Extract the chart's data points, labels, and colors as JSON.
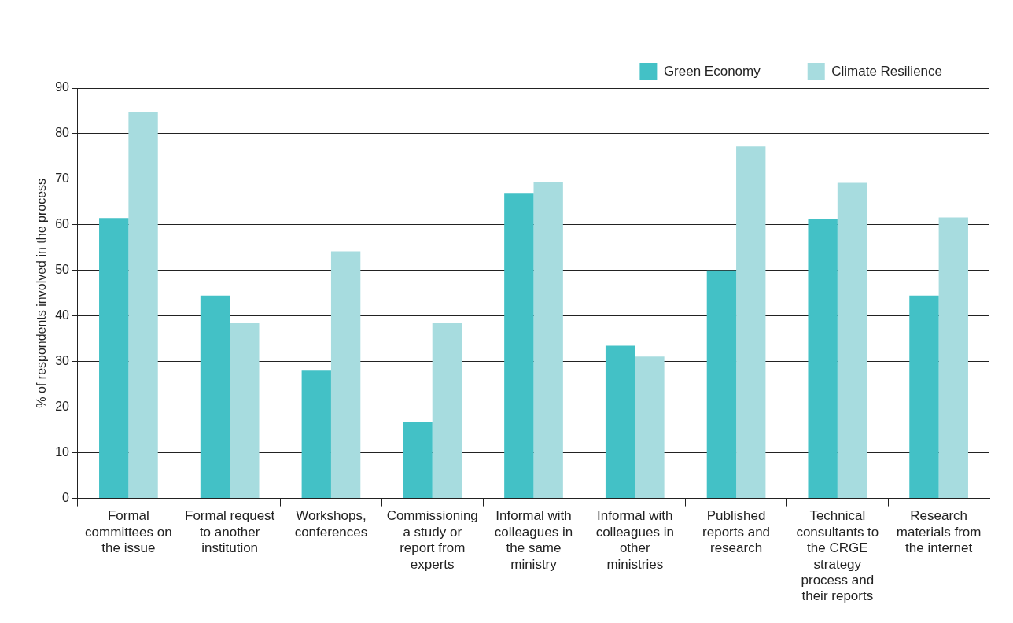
{
  "chart_data": {
    "type": "bar",
    "ylabel": "% of respondents involved in the process",
    "categories": [
      "Formal committees on the issue",
      "Formal request to another institution",
      "Workshops, conferences",
      "Commissioning a study or report from experts",
      "Informal with colleagues in the same ministry",
      "Informal with colleagues in other ministries",
      "Published reports and research",
      "Technical consultants to the CRGE strategy process and their reports",
      "Research materials from the internet"
    ],
    "series": [
      {
        "name": "Green Economy",
        "color": "#43c1c6",
        "values": [
          61.5,
          44.5,
          28,
          16.7,
          67,
          33.5,
          50,
          61.3,
          44.5
        ]
      },
      {
        "name": "Climate Resilience",
        "color": "#a7dcdf",
        "values": [
          84.7,
          38.6,
          54.2,
          38.6,
          69.4,
          31.1,
          77.2,
          69.2,
          61.6
        ]
      }
    ],
    "ylim": [
      0,
      90
    ],
    "yticks": [
      0,
      10,
      20,
      30,
      40,
      50,
      60,
      70,
      80,
      90
    ],
    "grid": "y",
    "legend": "top"
  }
}
